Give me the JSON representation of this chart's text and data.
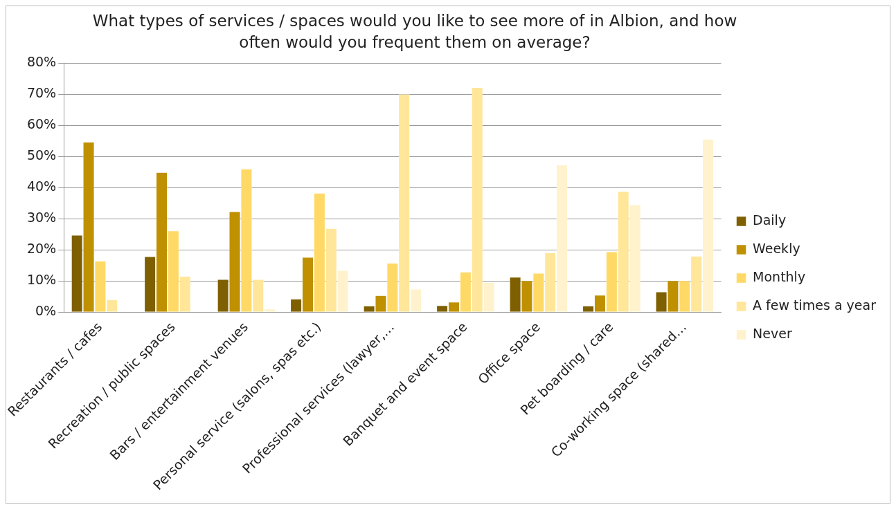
{
  "chart_data": {
    "type": "bar",
    "title": "What types of services / spaces would you like to see more of in Albion, and how often would you frequent them on average?",
    "categories": [
      "Restaurants / cafes",
      "Recreation / public spaces",
      "Bars / entertainment venues",
      "Personal service (salons, spas etc.)",
      "Professional services (lawyer,…",
      "Banquet and event space",
      "Office space",
      "Pet boarding / care",
      "Co-working space (shared…"
    ],
    "series": [
      {
        "name": "Daily",
        "color": "#7f6000",
        "values": [
          24.7,
          17.8,
          10.5,
          4.2,
          2,
          2.1,
          11.2,
          2,
          6.5
        ]
      },
      {
        "name": "Weekly",
        "color": "#bf9000",
        "values": [
          54.6,
          44.9,
          32.3,
          17.6,
          5.3,
          3.2,
          10.1,
          5.4,
          10.1
        ]
      },
      {
        "name": "Monthly",
        "color": "#ffd966",
        "values": [
          16.4,
          26.1,
          46,
          38.2,
          15.7,
          12.9,
          12.5,
          19.4,
          10.1
        ]
      },
      {
        "name": "A few times a year",
        "color": "#ffe699",
        "values": [
          4,
          11.5,
          10.5,
          26.9,
          70,
          72.2,
          19.1,
          38.8,
          18
        ]
      },
      {
        "name": "Never",
        "color": "#fff2cc",
        "values": [
          0,
          0,
          1,
          13.4,
          7.4,
          9.5,
          47.3,
          34.5,
          55.6
        ]
      }
    ],
    "ylim": [
      0,
      80
    ],
    "yticks": [
      {
        "value": 0,
        "label": "0%"
      },
      {
        "value": 10,
        "label": "10%"
      },
      {
        "value": 20,
        "label": "20%"
      },
      {
        "value": 30,
        "label": "30%"
      },
      {
        "value": 40,
        "label": "40%"
      },
      {
        "value": 50,
        "label": "50%"
      },
      {
        "value": 60,
        "label": "60%"
      },
      {
        "value": 70,
        "label": "70%"
      },
      {
        "value": 80,
        "label": "80%"
      }
    ],
    "grid": "y",
    "legend": "right"
  }
}
